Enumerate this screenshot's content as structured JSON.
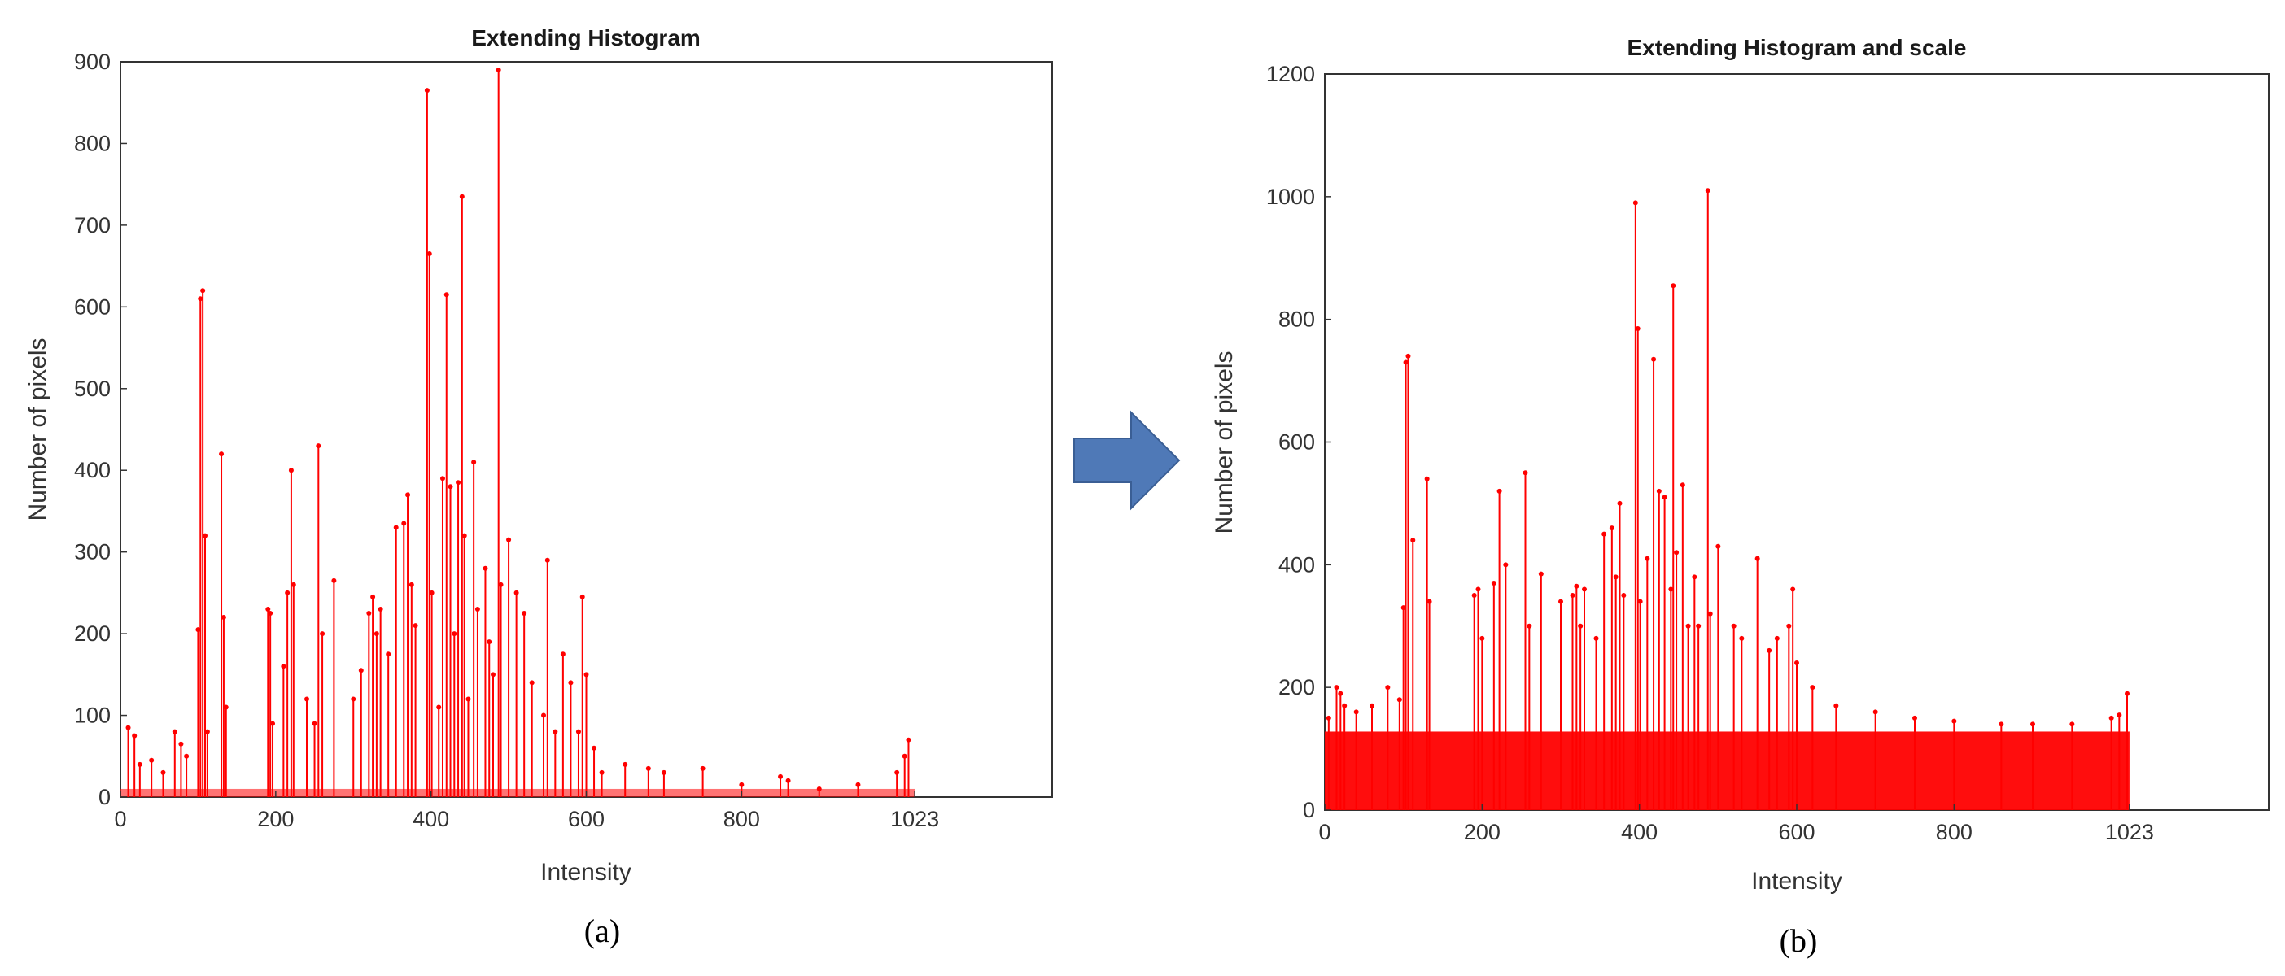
{
  "arrow_color": "#4F79B7",
  "series_color": "#FF0000",
  "chart_data": [
    {
      "type": "bar",
      "title": "Extending Histogram",
      "xlabel": "Intensity",
      "ylabel": "Number of pixels",
      "xlim": [
        0,
        1200
      ],
      "ylim": [
        0,
        900
      ],
      "xticks": [
        "0",
        "200",
        "400",
        "600",
        "800",
        "1023"
      ],
      "xtick_values": [
        0,
        200,
        400,
        600,
        800,
        1023
      ],
      "yticks": [
        "0",
        "100",
        "200",
        "300",
        "400",
        "500",
        "600",
        "700",
        "800",
        "900"
      ],
      "ytick_values": [
        0,
        100,
        200,
        300,
        400,
        500,
        600,
        700,
        800,
        900
      ],
      "caption": "(a)",
      "grid": false,
      "x": [
        10,
        18,
        25,
        40,
        55,
        70,
        78,
        85,
        100,
        103,
        106,
        109,
        112,
        130,
        133,
        136,
        190,
        193,
        196,
        210,
        215,
        220,
        223,
        240,
        250,
        255,
        260,
        275,
        300,
        310,
        320,
        325,
        330,
        335,
        345,
        355,
        365,
        370,
        375,
        380,
        395,
        398,
        401,
        410,
        415,
        420,
        425,
        430,
        435,
        440,
        443,
        448,
        455,
        460,
        470,
        475,
        480,
        487,
        490,
        500,
        510,
        520,
        530,
        545,
        550,
        560,
        570,
        580,
        590,
        595,
        600,
        610,
        620,
        650,
        680,
        700,
        750,
        800,
        850,
        860,
        900,
        950,
        1000,
        1010,
        1015
      ],
      "y": [
        85,
        75,
        40,
        45,
        30,
        80,
        65,
        50,
        205,
        610,
        620,
        320,
        80,
        420,
        220,
        110,
        230,
        225,
        90,
        160,
        250,
        400,
        260,
        120,
        90,
        430,
        200,
        265,
        120,
        155,
        225,
        245,
        200,
        230,
        175,
        330,
        335,
        370,
        260,
        210,
        865,
        665,
        250,
        110,
        390,
        615,
        380,
        200,
        385,
        735,
        320,
        120,
        410,
        230,
        280,
        190,
        150,
        890,
        260,
        315,
        250,
        225,
        140,
        100,
        290,
        80,
        175,
        140,
        80,
        245,
        150,
        60,
        30,
        40,
        35,
        30,
        35,
        15,
        25,
        20,
        10,
        15,
        30,
        50,
        70
      ],
      "baseline_x": [
        0,
        1023
      ],
      "baseline_y": 10
    },
    {
      "type": "bar",
      "title": "Extending Histogram and scale",
      "xlabel": "Intensity",
      "ylabel": "Number of pixels",
      "xlim": [
        0,
        1200
      ],
      "ylim": [
        0,
        1200
      ],
      "xticks": [
        "0",
        "200",
        "400",
        "600",
        "800",
        "1023"
      ],
      "xtick_values": [
        0,
        200,
        400,
        600,
        800,
        1023
      ],
      "yticks": [
        "0",
        "200",
        "400",
        "600",
        "800",
        "1000",
        "1200"
      ],
      "ytick_values": [
        0,
        200,
        400,
        600,
        800,
        1000,
        1200
      ],
      "caption": "(b)",
      "grid": false,
      "x": [
        5,
        15,
        20,
        25,
        40,
        60,
        80,
        95,
        100,
        103,
        106,
        112,
        130,
        133,
        190,
        195,
        200,
        215,
        222,
        230,
        255,
        260,
        275,
        300,
        315,
        320,
        325,
        330,
        345,
        355,
        365,
        370,
        375,
        380,
        395,
        398,
        401,
        410,
        418,
        425,
        432,
        440,
        443,
        447,
        455,
        462,
        470,
        475,
        487,
        490,
        500,
        520,
        530,
        550,
        565,
        575,
        590,
        595,
        600,
        620,
        650,
        700,
        750,
        800,
        860,
        900,
        950,
        1000,
        1010,
        1020
      ],
      "y": [
        150,
        200,
        190,
        170,
        160,
        170,
        200,
        180,
        330,
        730,
        740,
        440,
        540,
        340,
        350,
        360,
        280,
        370,
        520,
        400,
        550,
        300,
        385,
        340,
        350,
        365,
        300,
        360,
        280,
        450,
        460,
        380,
        500,
        350,
        990,
        785,
        340,
        410,
        735,
        520,
        510,
        360,
        855,
        420,
        530,
        300,
        380,
        300,
        1010,
        320,
        430,
        300,
        280,
        410,
        260,
        280,
        300,
        360,
        240,
        200,
        170,
        160,
        150,
        145,
        140,
        140,
        140,
        150,
        155,
        190
      ],
      "baseline_x": [
        0,
        1023
      ],
      "baseline_y": 128
    }
  ]
}
